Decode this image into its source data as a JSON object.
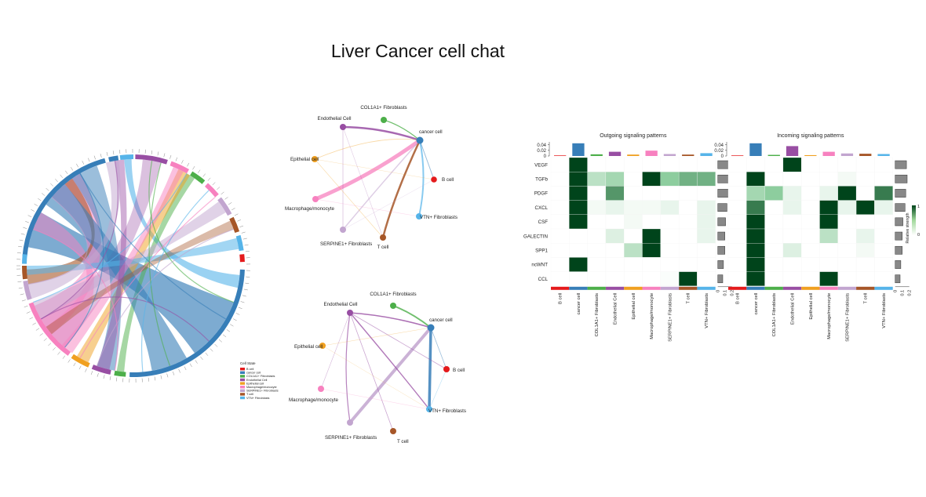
{
  "slide_title": "Liver Cancer cell chat",
  "colors": {
    "B cell": "#e41a1c",
    "cancer cell": "#377eb8",
    "COL1A1+ Fibroblasts": "#4daf4a",
    "Endothelial Cell": "#984ea3",
    "Epithelial cell": "#f0a020",
    "Macrophage/monocyte": "#f781bf",
    "SERPINE1+ Fibroblasts": "#c2a5cf",
    "T cell": "#a65628",
    "VTN+ Fibroblasts": "#56b4e9"
  },
  "chart_data": [
    {
      "type": "chord",
      "legend": {
        "title": "Cell State",
        "entries": [
          "B cell",
          "cancer cell",
          "COL1A1+ Fibroblasts",
          "Endothelial Cell",
          "Epithelial cell",
          "Macrophage/monocyte",
          "SERPINE1+ Fibroblasts",
          "T cell",
          "VTN+ Fibroblasts"
        ]
      }
    },
    {
      "type": "network",
      "nodes": [
        "COL1A1+ Fibroblasts",
        "Endothelial Cell",
        "cancer cell",
        "Epithelial cell",
        "B cell",
        "Macrophage/monocyte",
        "VTN+ Fibroblasts",
        "SERPINE1+ Fibroblasts",
        "T cell"
      ]
    },
    {
      "type": "network",
      "nodes": [
        "COL1A1+ Fibroblasts",
        "Endothelial Cell",
        "cancer cell",
        "Epithelial cell",
        "B cell",
        "Macrophage/monocyte",
        "VTN+ Fibroblasts",
        "SERPINE1+ Fibroblasts",
        "T cell"
      ]
    },
    {
      "type": "heatmap",
      "title": "Outgoing signaling patterns",
      "rows": [
        "VEGF",
        "TGFb",
        "PDGF",
        "CXCL",
        "CSF",
        "GALECTIN",
        "SPP1",
        "ncWNT",
        "CCL"
      ],
      "columns": [
        "B cell",
        "cancer cell",
        "COL1A1+ Fibroblasts",
        "Endothelial Cell",
        "Epithelial cell",
        "Macrophage/monocyte",
        "SERPINE1+ Fibroblasts",
        "T cell",
        "VTN+ Fibroblasts"
      ],
      "top_bar_values": [
        0.002,
        0.045,
        0.006,
        0.015,
        0.005,
        0.019,
        0.007,
        0.005,
        0.01
      ],
      "top_axis_ticks": [
        "0.04",
        "0.02",
        "0"
      ],
      "right_axis_ticks": [
        "0",
        "0.1",
        "0.2"
      ],
      "right_bar_values": [
        0.16,
        0.17,
        0.15,
        0.13,
        0.11,
        0.1,
        0.1,
        0.08,
        0.07
      ],
      "values": [
        [
          0,
          1,
          0,
          0,
          0,
          0,
          0,
          0,
          0
        ],
        [
          0,
          1,
          0.3,
          0.4,
          0,
          1,
          0.5,
          0.6,
          0.6
        ],
        [
          0,
          1,
          0,
          0.7,
          0,
          0,
          0,
          0,
          0
        ],
        [
          0,
          1,
          0.05,
          0.1,
          0.05,
          0.05,
          0.1,
          0,
          0.1
        ],
        [
          0,
          1,
          0,
          0,
          0.05,
          0,
          0,
          0,
          0.1
        ],
        [
          0,
          0,
          0,
          0.15,
          0,
          1,
          0,
          0,
          0.1
        ],
        [
          0,
          0,
          0,
          0,
          0.3,
          1,
          0,
          0,
          0
        ],
        [
          0,
          1,
          0,
          0,
          0,
          0,
          0,
          0,
          0
        ],
        [
          0,
          0,
          0,
          0,
          0,
          0,
          0.02,
          1,
          0
        ]
      ]
    },
    {
      "type": "heatmap",
      "title": "Incoming signaling patterns",
      "rows": [
        "VEGF",
        "TGFb",
        "PDGF",
        "CXCL",
        "CSF",
        "GALECTIN",
        "SPP1",
        "ncWNT",
        "CCL"
      ],
      "columns": [
        "B cell",
        "cancer cell",
        "COL1A1+ Fibroblasts",
        "Endothelial Cell",
        "Epithelial cell",
        "Macrophage/monocyte",
        "SERPINE1+ Fibroblasts",
        "T cell",
        "VTN+ Fibroblasts"
      ],
      "top_bar_values": [
        0.002,
        0.045,
        0.004,
        0.035,
        0.003,
        0.015,
        0.009,
        0.008,
        0.007
      ],
      "top_axis_ticks": [
        "0.04",
        "0.02",
        "0"
      ],
      "right_axis_ticks": [
        "0",
        "0.1",
        "0.2"
      ],
      "right_bar_values": [
        0.16,
        0.17,
        0.15,
        0.14,
        0.11,
        0.1,
        0.1,
        0.08,
        0.07
      ],
      "values": [
        [
          0,
          0,
          0,
          1,
          0,
          0,
          0,
          0,
          0
        ],
        [
          0,
          1,
          0,
          0,
          0,
          0,
          0.05,
          0,
          0
        ],
        [
          0,
          0.4,
          0.5,
          0.1,
          0,
          0.1,
          1,
          0,
          0.8
        ],
        [
          0,
          0.8,
          0,
          0.1,
          0,
          1,
          0.1,
          1,
          0.1
        ],
        [
          0,
          1,
          0,
          0,
          0,
          1,
          0,
          0,
          0
        ],
        [
          0,
          1,
          0,
          0,
          0,
          0.3,
          0,
          0.1,
          0
        ],
        [
          0,
          1,
          0,
          0.15,
          0,
          0,
          0,
          0.05,
          0
        ],
        [
          0,
          1,
          0,
          0,
          0,
          0,
          0,
          0,
          0
        ],
        [
          0,
          1,
          0,
          0,
          0,
          1,
          0,
          0,
          0
        ]
      ],
      "colorbar": {
        "label": "Relative strength",
        "ticks": [
          "1",
          "0"
        ]
      }
    }
  ]
}
